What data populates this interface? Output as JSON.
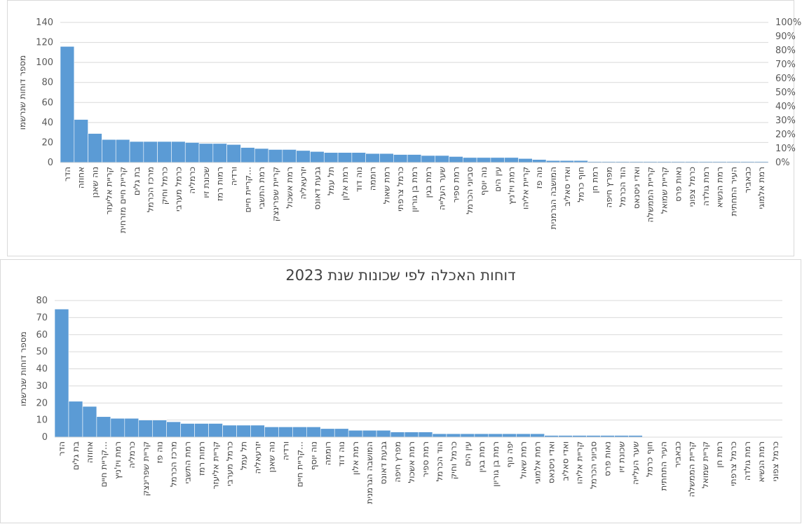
{
  "chart_data": [
    {
      "type": "bar",
      "title": "",
      "ylabel": "מספר דוחות שנרשמו",
      "ylim": [
        0,
        140
      ],
      "yticks": [
        0,
        20,
        40,
        60,
        80,
        100,
        120,
        140
      ],
      "y2ticks": [
        "0%",
        "10%",
        "20%",
        "30%",
        "40%",
        "50%",
        "60%",
        "70%",
        "80%",
        "90%",
        "100%"
      ],
      "bar_color": "#5b9bd5",
      "categories": [
        "הדר",
        "אחוזה",
        "נוה שאנן",
        "קריית אליעזר",
        "קריית חיים מזרחית",
        "בת גלים",
        "מרכז הכרמל",
        "כרמל וחיק",
        "כרמל מערבי",
        "כרמליה",
        "שכונת זיו",
        "רמות רמז",
        "ורדיה",
        "קריית חיים…",
        "רמת התשבי",
        "קריית שפרינצק",
        "רמת אשכול",
        "יזרעאליה",
        "גבעת דאונס",
        "תל עמל",
        "רמת אלון",
        "נוה דוד",
        "רוממה",
        "רמת שאול",
        "כרמל צרפתי",
        "רמת בן גוריון",
        "רמת בגין",
        "שער העלייה",
        "רמת ספיר",
        "סביוני הכרמל",
        "נוה יוסף",
        "עין הים",
        "רמת ויז'ניץ",
        "קריית אליהו",
        "נוה פז",
        "המושבה הגרמנית",
        "ואדי סאליב",
        "חוף כרמל",
        "רמת חן",
        "מפרץ חיפה",
        "הוד הכרמל",
        "ואדי ניסנאס",
        "קריית הממשלה",
        "קריית שמואל",
        "נאות פרס",
        "כרמל צפוני",
        "רמת גולדה",
        "רמת הנשיא",
        "העיר התחתית",
        "כבאביר",
        "רמת אלמוגי"
      ],
      "values": [
        116,
        43,
        29,
        23,
        23,
        21,
        21,
        21,
        21,
        20,
        19,
        19,
        18,
        15,
        14,
        13,
        13,
        12,
        11,
        10,
        10,
        10,
        9,
        9,
        8,
        8,
        7,
        7,
        6,
        5,
        5,
        5,
        5,
        4,
        3,
        2,
        2,
        2,
        1,
        1,
        1,
        1,
        1,
        1,
        1,
        1,
        1,
        1,
        1,
        1,
        1
      ]
    },
    {
      "type": "bar",
      "title": "דוחות האכלה לפי שכונות שנת 2023",
      "ylabel": "מספר דוחות שנרשמו",
      "ylim": [
        0,
        80
      ],
      "yticks": [
        0,
        10,
        20,
        30,
        40,
        50,
        60,
        70,
        80
      ],
      "bar_color": "#5b9bd5",
      "categories": [
        "הדר",
        "בת גלים",
        "אחוזה",
        "קריית חיים…",
        "רמת ויז'ניץ",
        "כרמליה",
        "קריית שפרינצק",
        "נוה פז",
        "מרכז הכרמל",
        "רמת התשבי",
        "רמות רמז",
        "קריית אליעזר",
        "כרמל מערבי",
        "תל עמל",
        "יזרעאליה",
        "נוה שאנן",
        "ורדיה",
        "קריית חיים…",
        "נוה יוסף",
        "רוממה",
        "נוה דוד",
        "רמת אלון",
        "המושבה הגרמנית",
        "גבעת דאונס",
        "מפרץ חיפה",
        "רמת אשכול",
        "רמת ספיר",
        "הוד הכרמל",
        "כרמל וחיק",
        "עין הים",
        "רמת בגין",
        "רמת בן גוריון",
        "יפה נוף",
        "רמת שאול",
        "רמת אלמוגי",
        "ואדי ניסנאס",
        "ואדי סאליב",
        "קריית אליהו",
        "סביוני הכרמל",
        "נאות פרס",
        "שכונת זיו",
        "שער העלייה",
        "חוף כרמל",
        "העיר התחתית",
        "כבאביר",
        "קריית הממשלה",
        "קריית שמואל",
        "רמת חן",
        "כרמל צרפתי",
        "רמת גולדה",
        "רמת הנשיא",
        "כרמל צפוני"
      ],
      "values": [
        75,
        21,
        18,
        12,
        11,
        11,
        10,
        10,
        9,
        8,
        8,
        8,
        7,
        7,
        7,
        6,
        6,
        6,
        6,
        5,
        5,
        4,
        4,
        4,
        3,
        3,
        3,
        2,
        2,
        2,
        2,
        2,
        2,
        2,
        2,
        1,
        1,
        1,
        1,
        1,
        1,
        1,
        0,
        0,
        0,
        0,
        0,
        0,
        0,
        0,
        0,
        0
      ]
    }
  ]
}
